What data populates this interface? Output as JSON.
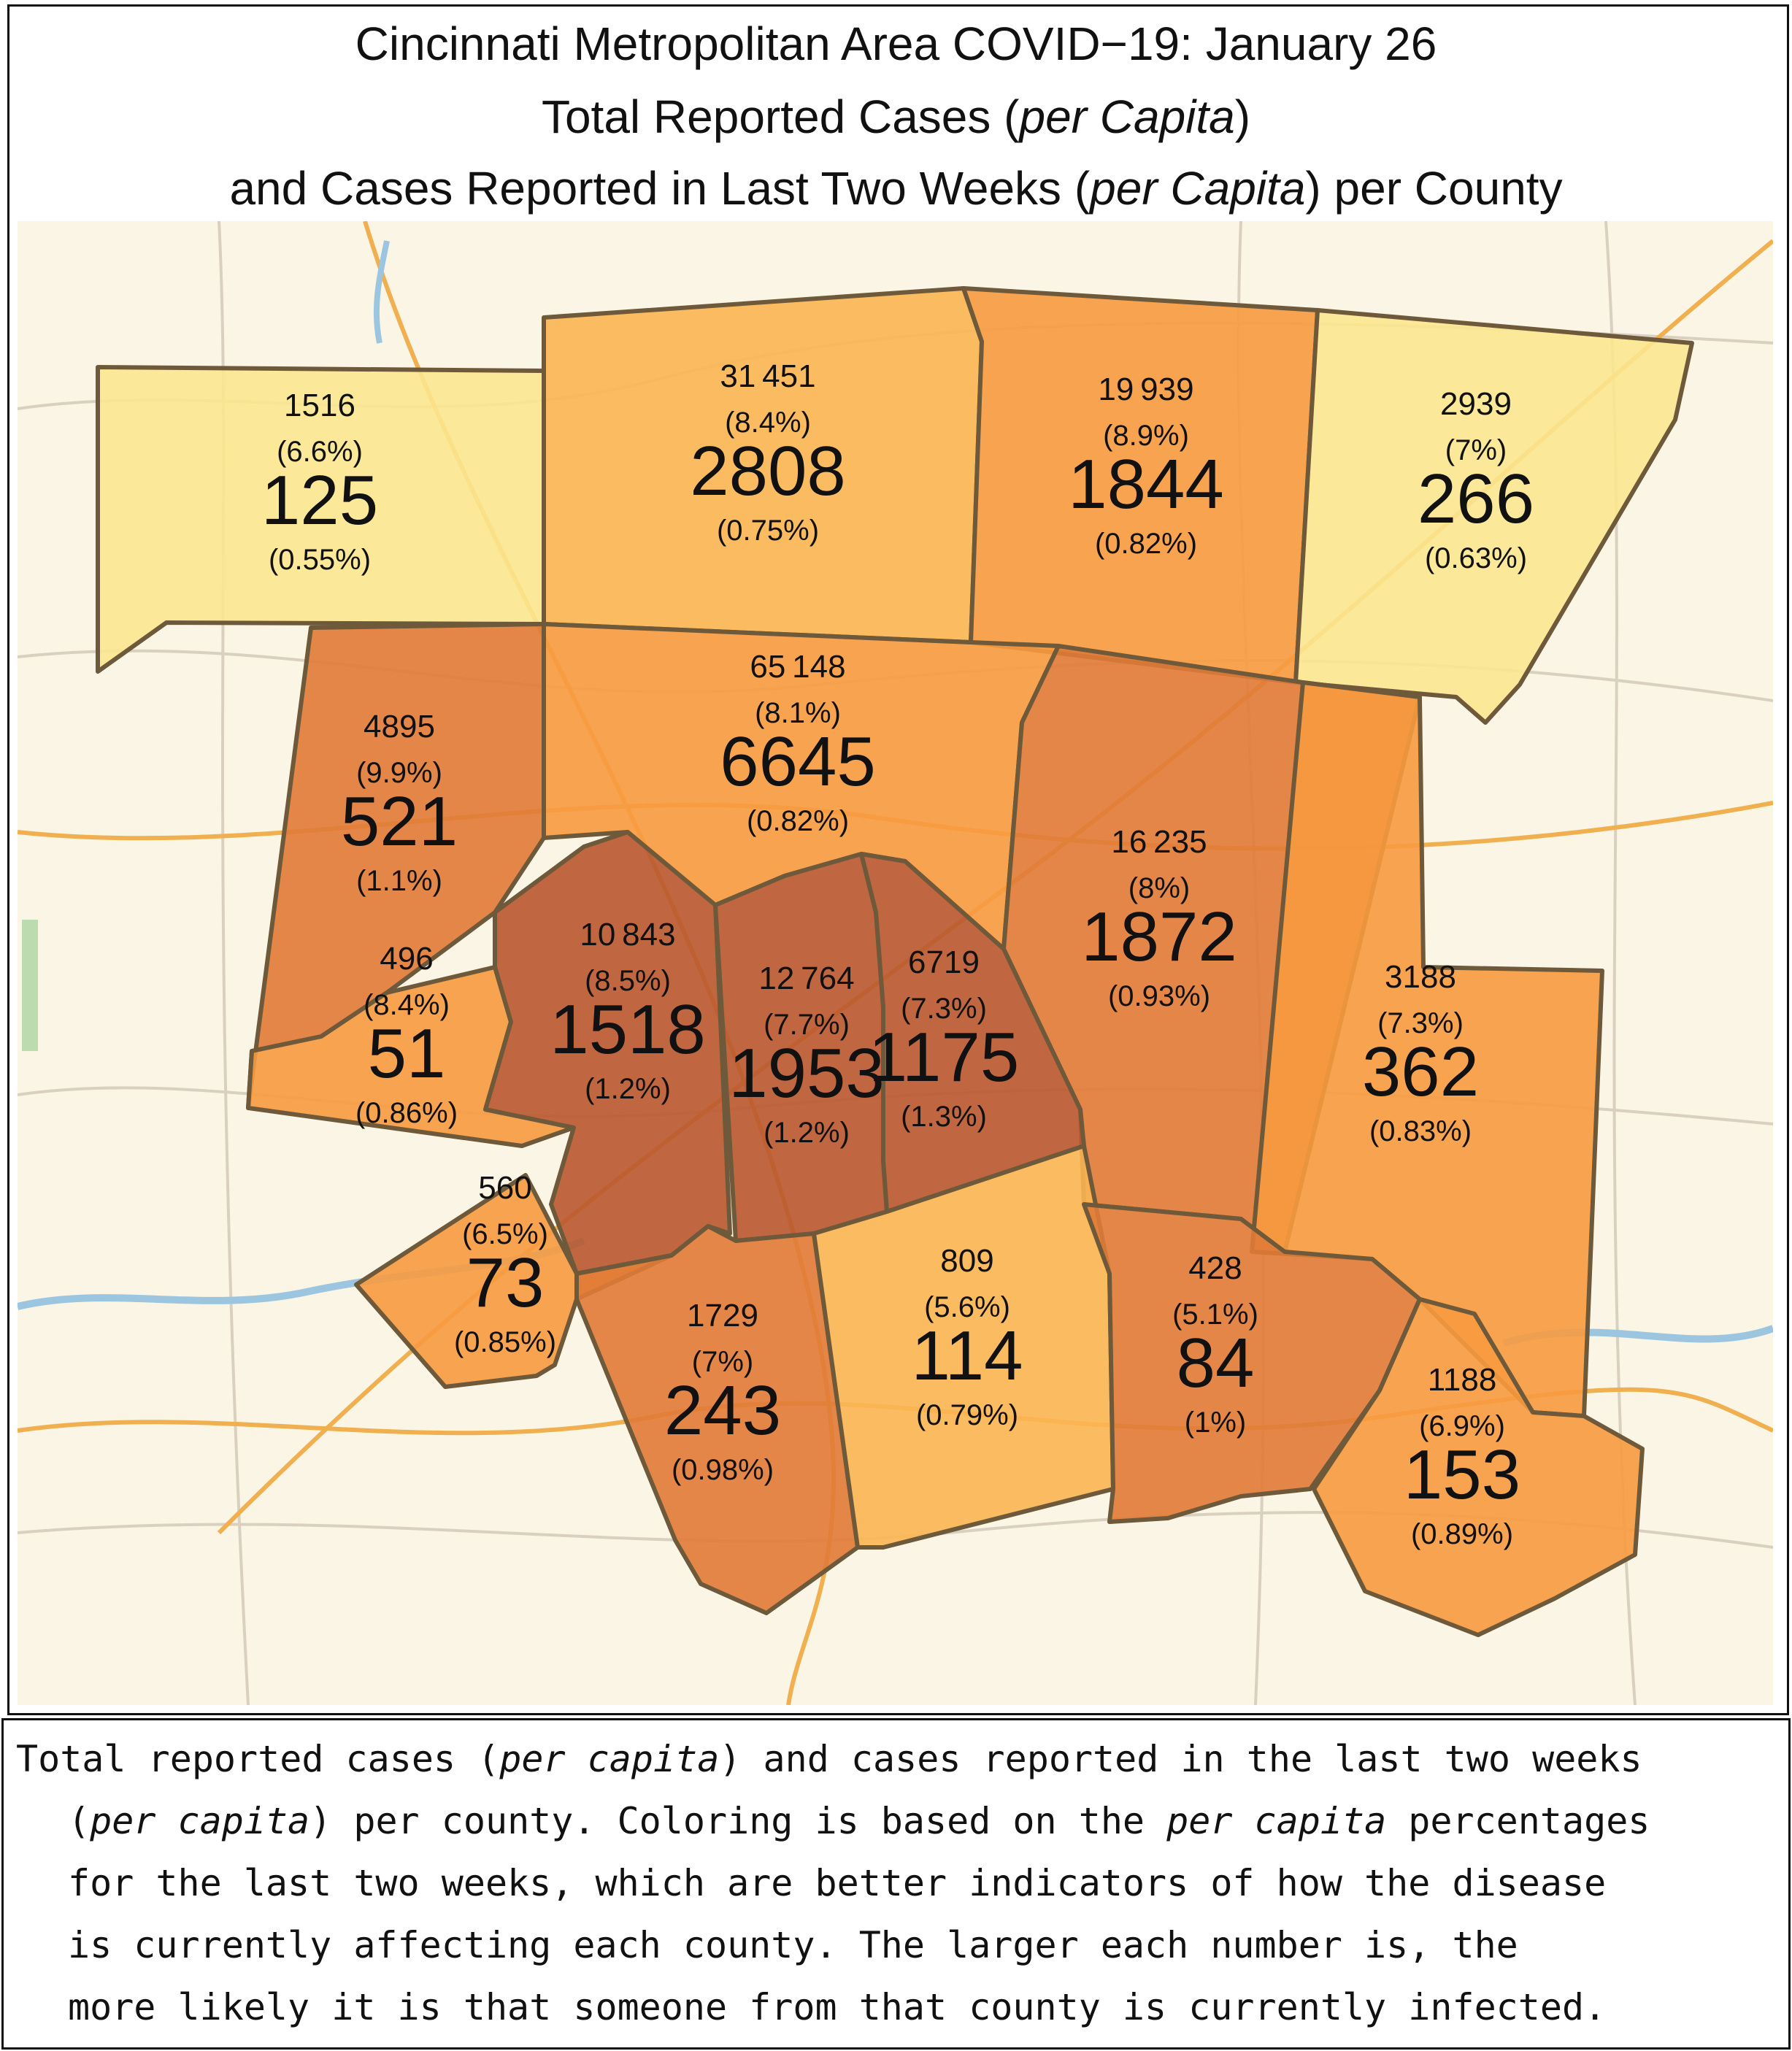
{
  "title": {
    "line1": "Cincinnati Metropolitan Area COVID−19: January 26",
    "line2_pre": "Total Reported Cases (",
    "line2_em": "per Capita",
    "line2_post": ")",
    "line3_pre": "and Cases Reported in Last Two Weeks (",
    "line3_em": "per Capita",
    "line3_post": ") per County"
  },
  "colors": {
    "lightest": "#fbe78f",
    "light": "#fbb552",
    "medium": "#f79a3f",
    "dark": "#e07a36",
    "darkest": "#b9582f",
    "border": "#6e5a3a",
    "basemap": "#fbf5e6"
  },
  "counties": [
    {
      "id": "c1",
      "total": "1516",
      "total_pct": "(6.6%)",
      "recent": "125",
      "recent_pct": "(0.55%)",
      "shade": "lightest"
    },
    {
      "id": "c2",
      "total": "31 451",
      "total_pct": "(8.4%)",
      "recent": "2808",
      "recent_pct": "(0.75%)",
      "shade": "light"
    },
    {
      "id": "c3",
      "total": "19 939",
      "total_pct": "(8.9%)",
      "recent": "1844",
      "recent_pct": "(0.82%)",
      "shade": "medium"
    },
    {
      "id": "c4",
      "total": "2939",
      "total_pct": "(7%)",
      "recent": "266",
      "recent_pct": "(0.63%)",
      "shade": "lightest"
    },
    {
      "id": "c5",
      "total": "4895",
      "total_pct": "(9.9%)",
      "recent": "521",
      "recent_pct": "(1.1%)",
      "shade": "dark"
    },
    {
      "id": "c6",
      "total": "65 148",
      "total_pct": "(8.1%)",
      "recent": "6645",
      "recent_pct": "(0.82%)",
      "shade": "medium"
    },
    {
      "id": "c7",
      "total": "16 235",
      "total_pct": "(8%)",
      "recent": "1872",
      "recent_pct": "(0.93%)",
      "shade": "dark"
    },
    {
      "id": "c8",
      "total": "496",
      "total_pct": "(8.4%)",
      "recent": "51",
      "recent_pct": "(0.86%)",
      "shade": "medium"
    },
    {
      "id": "c9",
      "total": "10 843",
      "total_pct": "(8.5%)",
      "recent": "1518",
      "recent_pct": "(1.2%)",
      "shade": "darkest"
    },
    {
      "id": "c10",
      "total": "12 764",
      "total_pct": "(7.7%)",
      "recent": "1953",
      "recent_pct": "(1.2%)",
      "shade": "darkest"
    },
    {
      "id": "c11",
      "total": "6719",
      "total_pct": "(7.3%)",
      "recent": "1175",
      "recent_pct": "(1.3%)",
      "shade": "darkest"
    },
    {
      "id": "c12",
      "total": "3188",
      "total_pct": "(7.3%)",
      "recent": "362",
      "recent_pct": "(0.83%)",
      "shade": "medium"
    },
    {
      "id": "c13",
      "total": "560",
      "total_pct": "(6.5%)",
      "recent": "73",
      "recent_pct": "(0.85%)",
      "shade": "medium"
    },
    {
      "id": "c14",
      "total": "1729",
      "total_pct": "(7%)",
      "recent": "243",
      "recent_pct": "(0.98%)",
      "shade": "dark"
    },
    {
      "id": "c15",
      "total": "809",
      "total_pct": "(5.6%)",
      "recent": "114",
      "recent_pct": "(0.79%)",
      "shade": "light"
    },
    {
      "id": "c16",
      "total": "428",
      "total_pct": "(5.1%)",
      "recent": "84",
      "recent_pct": "(1%)",
      "shade": "dark"
    },
    {
      "id": "c17",
      "total": "1188",
      "total_pct": "(6.9%)",
      "recent": "153",
      "recent_pct": "(0.89%)",
      "shade": "medium"
    }
  ],
  "caption": {
    "l1_a": "Total reported cases (",
    "l1_em": "per capita",
    "l1_b": ") and cases reported in the last two weeks",
    "l2_a": "(",
    "l2_em": "per capita",
    "l2_b": ") per county. Coloring is based on the ",
    "l2_em2": "per capita",
    "l2_c": " percentages",
    "l3": "for the last two weeks, which are better indicators of how the disease",
    "l4": "is currently affecting each county. The larger each number is, the",
    "l5": "more likely it is that someone from that county is currently infected."
  }
}
